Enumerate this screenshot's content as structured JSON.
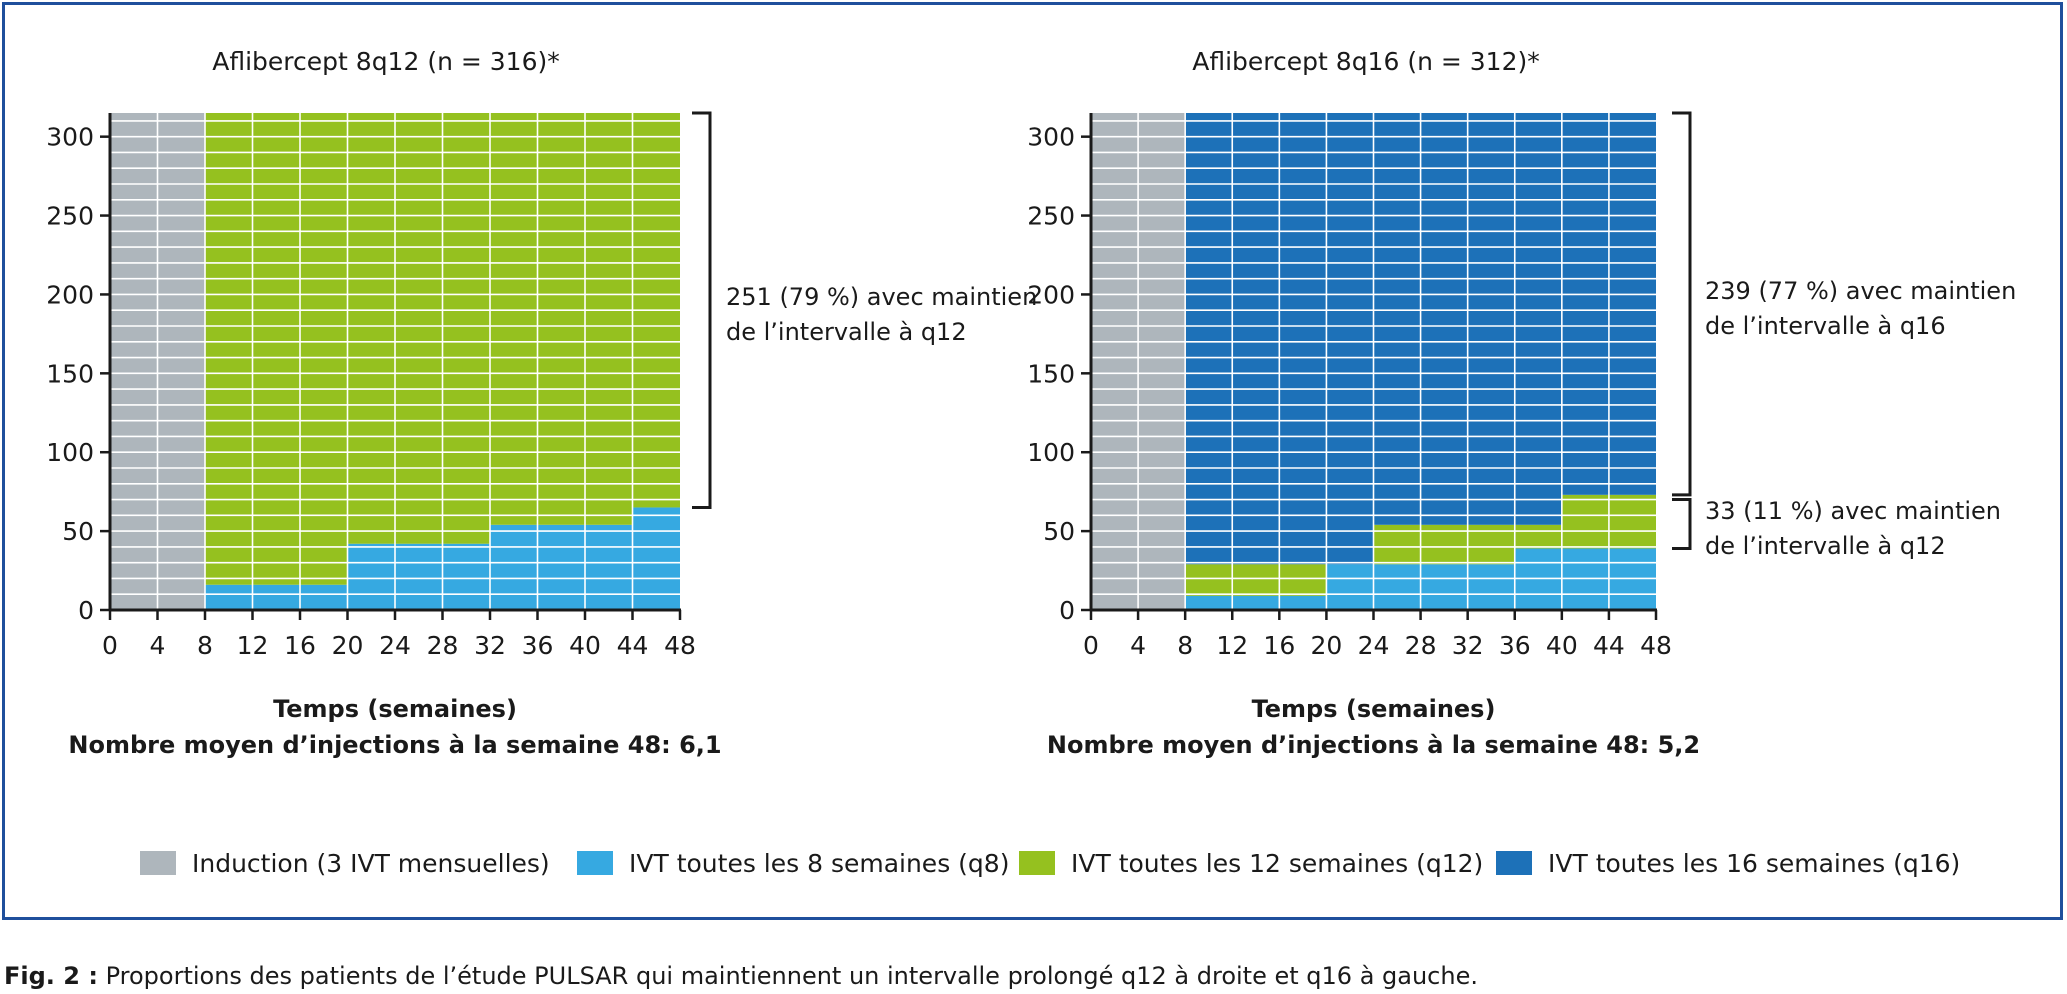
{
  "caption": {
    "label": "Fig. 2 :",
    "text": "Proportions des patients de l’étude PULSAR qui maintiennent un intervalle prolongé q12 à droite et q16 à gauche."
  },
  "legend": [
    {
      "label": "Induction (3 IVT mensuelles)",
      "color": "#aeb6bc"
    },
    {
      "label": "IVT toutes les 8 semaines (q8)",
      "color": "#36a9e1"
    },
    {
      "label": "IVT toutes les 12 semaines (q12)",
      "color": "#95c11f"
    },
    {
      "label": "IVT toutes les 16 semaines (q16)",
      "color": "#1d71b8"
    }
  ],
  "chart_data": [
    {
      "type": "area",
      "title": "Aflibercept 8q12 (n = 316)*",
      "xlabel": "Temps (semaines)",
      "subtitle": "Nombre moyen d’injections à la semaine 48: 6,1",
      "xticks": [
        0,
        4,
        8,
        12,
        16,
        20,
        24,
        28,
        32,
        36,
        40,
        44,
        48
      ],
      "yticks": [
        0,
        50,
        100,
        150,
        200,
        250,
        300
      ],
      "xlim": [
        0,
        48
      ],
      "ylim": [
        0,
        315
      ],
      "n": 316,
      "induction_end_week": 8,
      "segments": [
        {
          "regimen": "q8",
          "from_week": 8,
          "to_week": 20,
          "y0": 0,
          "y1": 16
        },
        {
          "regimen": "q8",
          "from_week": 20,
          "to_week": 32,
          "y0": 0,
          "y1": 42
        },
        {
          "regimen": "q8",
          "from_week": 32,
          "to_week": 44,
          "y0": 0,
          "y1": 54
        },
        {
          "regimen": "q8",
          "from_week": 44,
          "to_week": 48,
          "y0": 0,
          "y1": 65
        },
        {
          "regimen": "q12",
          "from_week": 8,
          "to_week": 20,
          "y0": 16,
          "y1": 315
        },
        {
          "regimen": "q12",
          "from_week": 20,
          "to_week": 32,
          "y0": 42,
          "y1": 315
        },
        {
          "regimen": "q12",
          "from_week": 32,
          "to_week": 44,
          "y0": 54,
          "y1": 315
        },
        {
          "regimen": "q12",
          "from_week": 44,
          "to_week": 48,
          "y0": 65,
          "y1": 315
        }
      ],
      "annotations": [
        {
          "text": [
            "251 (79 %) avec maintien",
            "de l’intervalle à q12"
          ],
          "y_from": 65,
          "y_to": 315
        }
      ]
    },
    {
      "type": "area",
      "title": "Aflibercept 8q16 (n = 312)*",
      "xlabel": "Temps (semaines)",
      "subtitle": "Nombre moyen d’injections à la semaine 48: 5,2",
      "xticks": [
        0,
        4,
        8,
        12,
        16,
        20,
        24,
        28,
        32,
        36,
        40,
        44,
        48
      ],
      "yticks": [
        0,
        50,
        100,
        150,
        200,
        250,
        300
      ],
      "xlim": [
        0,
        48
      ],
      "ylim": [
        0,
        315
      ],
      "n": 312,
      "induction_end_week": 8,
      "segments": [
        {
          "regimen": "q8",
          "from_week": 8,
          "to_week": 20,
          "y0": 0,
          "y1": 9
        },
        {
          "regimen": "q8",
          "from_week": 20,
          "to_week": 36,
          "y0": 0,
          "y1": 29
        },
        {
          "regimen": "q8",
          "from_week": 36,
          "to_week": 48,
          "y0": 0,
          "y1": 39
        },
        {
          "regimen": "q12",
          "from_week": 8,
          "to_week": 20,
          "y0": 9,
          "y1": 29
        },
        {
          "regimen": "q12",
          "from_week": 24,
          "to_week": 36,
          "y0": 29,
          "y1": 54
        },
        {
          "regimen": "q12",
          "from_week": 36,
          "to_week": 40,
          "y0": 39,
          "y1": 54
        },
        {
          "regimen": "q12",
          "from_week": 40,
          "to_week": 48,
          "y0": 39,
          "y1": 73
        },
        {
          "regimen": "q16",
          "from_week": 8,
          "to_week": 20,
          "y0": 29,
          "y1": 315
        },
        {
          "regimen": "q16",
          "from_week": 20,
          "to_week": 24,
          "y0": 29,
          "y1": 315
        },
        {
          "regimen": "q16",
          "from_week": 24,
          "to_week": 40,
          "y0": 54,
          "y1": 315
        },
        {
          "regimen": "q16",
          "from_week": 40,
          "to_week": 48,
          "y0": 73,
          "y1": 315
        }
      ],
      "annotations": [
        {
          "text": [
            "239 (77 %) avec maintien",
            "de l’intervalle à q16"
          ],
          "y_from": 73,
          "y_to": 315
        },
        {
          "text": [
            "33 (11 %) avec maintien",
            "de l’intervalle à q12"
          ],
          "y_from": 39,
          "y_to": 70
        }
      ]
    }
  ]
}
